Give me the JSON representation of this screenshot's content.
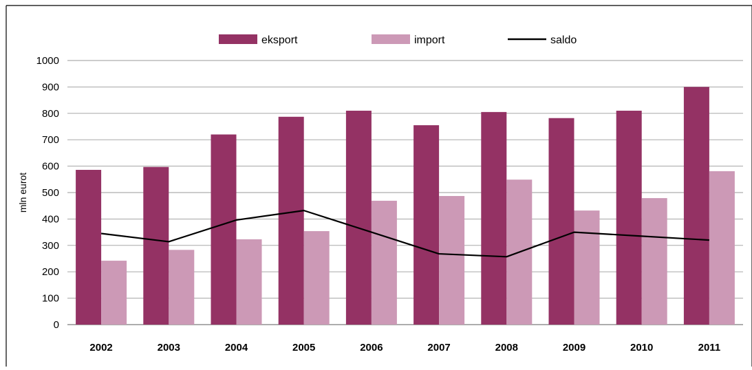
{
  "chart_data": {
    "type": "bar",
    "categories": [
      "2002",
      "2003",
      "2004",
      "2005",
      "2006",
      "2007",
      "2008",
      "2009",
      "2010",
      "2011"
    ],
    "series": [
      {
        "name": "eksport",
        "type": "bar",
        "color": "#943264",
        "values": [
          586,
          597,
          720,
          787,
          810,
          755,
          805,
          782,
          810,
          900
        ]
      },
      {
        "name": "import",
        "type": "bar",
        "color": "#CC99B6",
        "values": [
          242,
          283,
          323,
          354,
          469,
          487,
          549,
          432,
          479,
          581
        ]
      },
      {
        "name": "saldo",
        "type": "line",
        "color": "#000000",
        "values": [
          345,
          314,
          396,
          432,
          350,
          268,
          257,
          350,
          335,
          320
        ]
      }
    ],
    "ylabel": "mln eurot",
    "ylim": [
      0,
      1000
    ],
    "yticks": [
      "0",
      "100",
      "200",
      "300",
      "400",
      "500",
      "600",
      "700",
      "800",
      "900",
      "1000"
    ],
    "grid": true,
    "legend_position": "top-center"
  }
}
